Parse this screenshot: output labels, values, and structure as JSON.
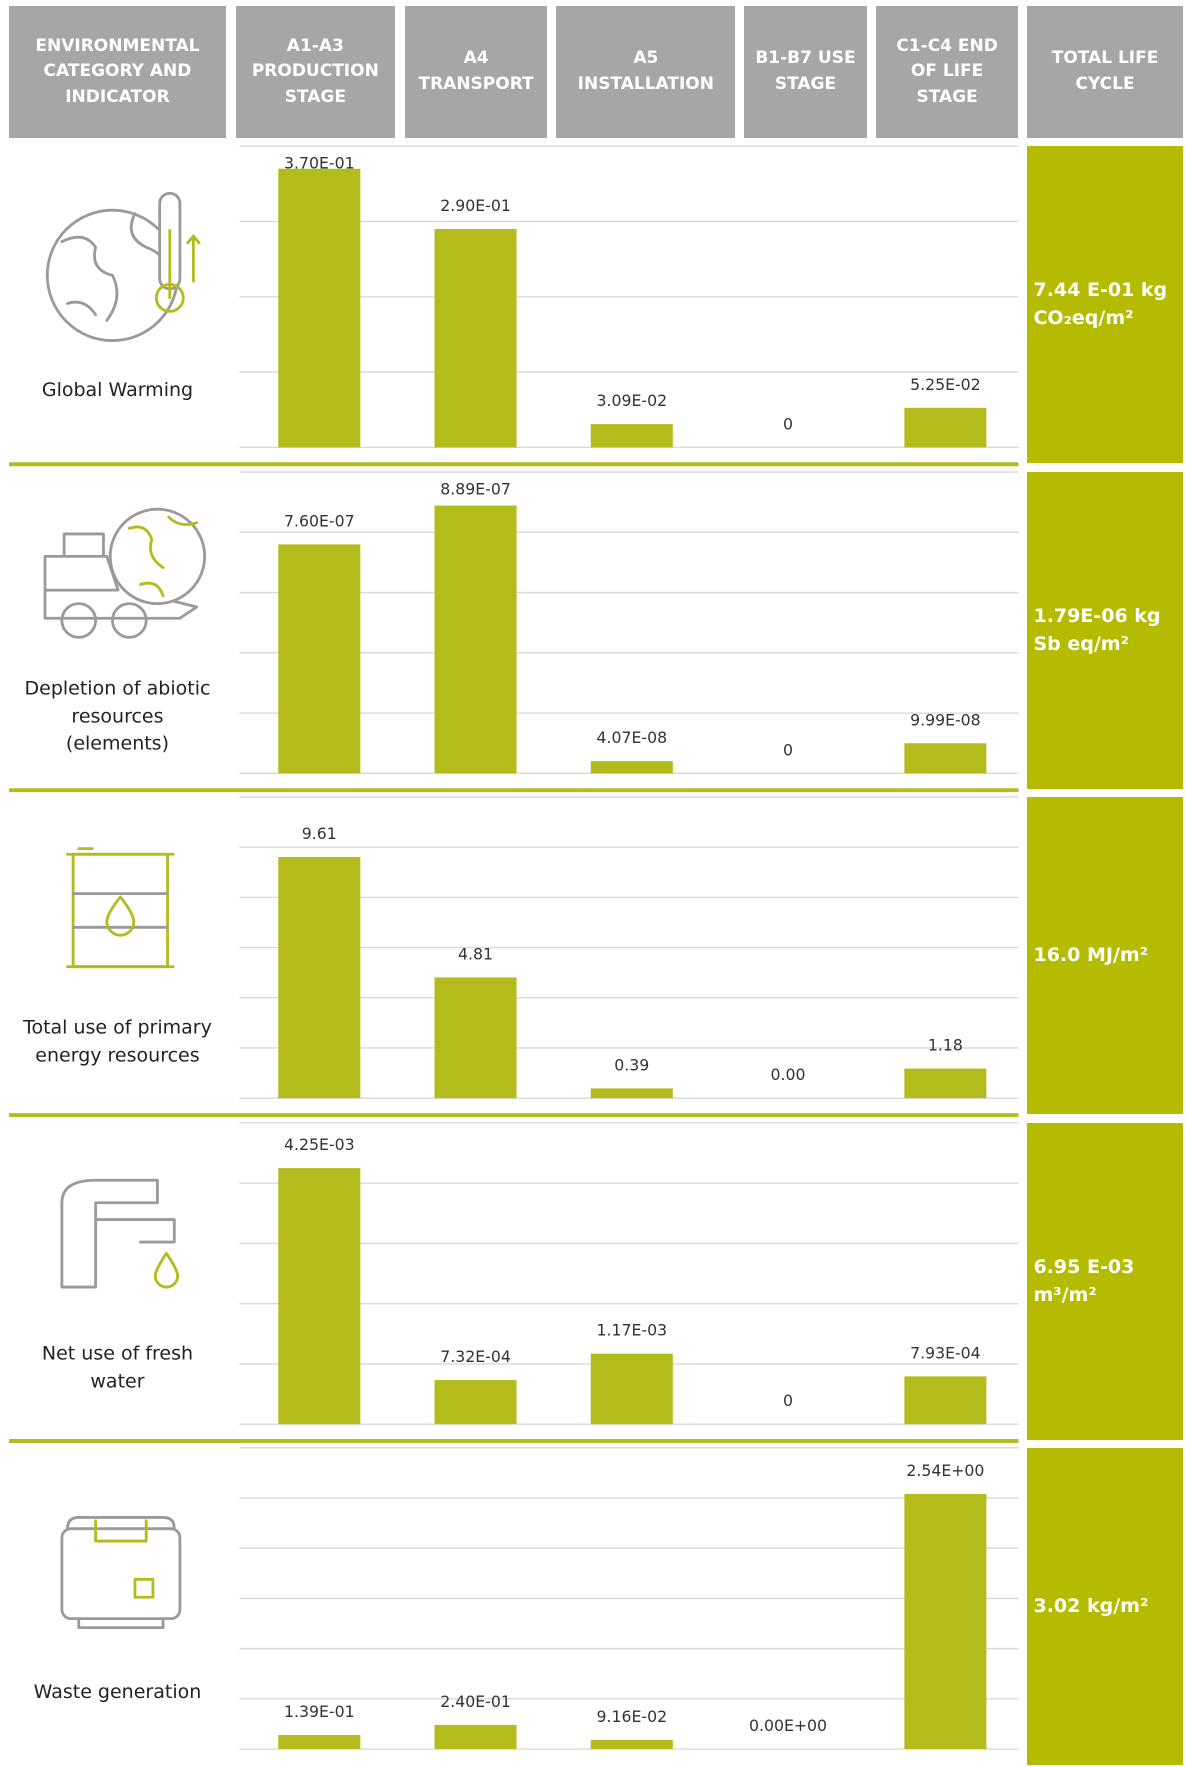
{
  "header": [
    "ENVIRONMENTAL\nCATEGORY AND\nINDICATOR",
    "A1-A3\nPRODUCTION\nSTAGE",
    "A4\nTRANSPORT",
    "A5\nINSTALLATION",
    "B1-B7 USE\nSTAGE",
    "C1-C4 END\nOF LIFE\nSTAGE",
    "TOTAL LIFE\nCYCLE"
  ],
  "chart_data": [
    {
      "type": "bar",
      "title": "Global Warming",
      "annotation": "7.44 E-01 kg\nCO₂eq/m²",
      "color": "#b3bb1d",
      "values": [
        0.37,
        0.29,
        0.0309,
        0,
        0.0525
      ],
      "value_labels": [
        "3.70E-01",
        "2.90E-01",
        "3.09E-02",
        "0",
        "5.25E-02"
      ],
      "ylim": [
        0,
        0.4
      ],
      "yticks": [
        0,
        0.1,
        0.2,
        0.3,
        0.4
      ],
      "grid": true
    },
    {
      "type": "bar",
      "title": "Depletion of abiotic\nresources\n(elements)",
      "annotation": "1.79E-06 kg\nSb eq/m²",
      "color": "#b3bb1d",
      "values": [
        7.6e-07,
        8.89e-07,
        4.07e-08,
        0,
        9.99e-08
      ],
      "value_labels": [
        "7.60E-07",
        "8.89E-07",
        "4.07E-08",
        "0",
        "9.99E-08"
      ],
      "ylim": [
        0,
        1e-06
      ],
      "yticks": [
        0,
        2e-07,
        4e-07,
        6e-07,
        8e-07,
        1e-06
      ],
      "grid": true
    },
    {
      "type": "bar",
      "title": "Total use of primary\nenergy resources",
      "annotation": "16.0 MJ/m²",
      "color": "#b3bb1d",
      "values": [
        9.61,
        4.81,
        0.39,
        0,
        1.18
      ],
      "value_labels": [
        "9.61",
        "4.81",
        "0.39",
        "0.00",
        "1.18"
      ],
      "ylim": [
        0,
        12
      ],
      "yticks": [
        0,
        2,
        4,
        6,
        8,
        10,
        12
      ],
      "grid": true
    },
    {
      "type": "bar",
      "title": "Net use of fresh\nwater",
      "annotation": "6.95 E-03\nm³/m²",
      "color": "#b3bb1d",
      "values": [
        0.00425,
        0.000732,
        0.00117,
        0,
        0.000793
      ],
      "value_labels": [
        "4.25E-03",
        "7.32E-04",
        "1.17E-03",
        "0",
        "7.93E-04"
      ],
      "ylim": [
        0,
        0.005
      ],
      "yticks": [
        0,
        0.001,
        0.002,
        0.003,
        0.004,
        0.005
      ],
      "grid": true
    },
    {
      "type": "bar",
      "title": "Waste generation",
      "annotation": "3.02 kg/m²",
      "color": "#b3bb1d",
      "values": [
        0.139,
        0.24,
        0.0916,
        0,
        2.54
      ],
      "value_labels": [
        "1.39E-01",
        "2.40E-01",
        "9.16E-02",
        "0.00E+00",
        "2.54E+00"
      ],
      "ylim": [
        0,
        3
      ],
      "yticks": [
        0,
        0.5,
        1,
        1.5,
        2,
        2.5,
        3
      ],
      "grid": true
    }
  ]
}
